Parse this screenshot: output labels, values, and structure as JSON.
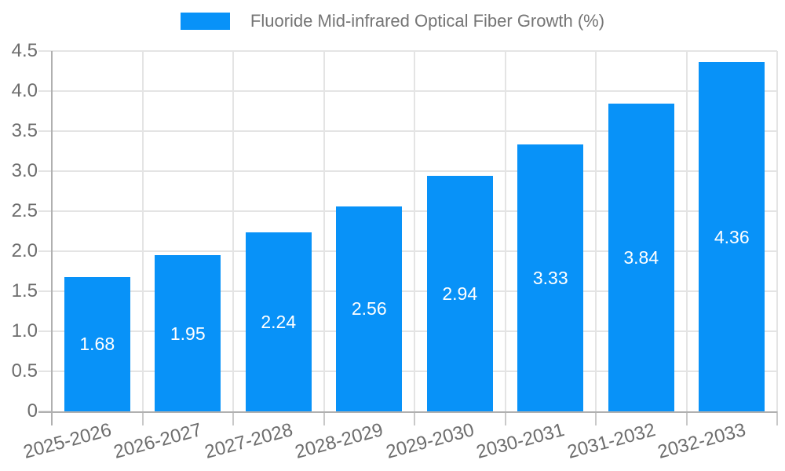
{
  "legend": {
    "label": "Fluoride Mid-infrared Optical Fiber Growth (%)"
  },
  "colors": {
    "bar": "#0892f8",
    "grid": "#e4e4e4",
    "axis": "#b0b0b0",
    "tick_mark": "#c9c9c9",
    "tick_text": "#6d6d6d",
    "legend_text": "#757575",
    "value_text": "#ffffff",
    "background": "#ffffff"
  },
  "chart_data": {
    "type": "bar",
    "title": "Fluoride Mid-infrared Optical Fiber Growth (%)",
    "series": [
      {
        "name": "Fluoride Mid-infrared Optical Fiber Growth (%)",
        "values": [
          1.68,
          1.95,
          2.24,
          2.56,
          2.94,
          3.33,
          3.84,
          4.36
        ]
      }
    ],
    "categories": [
      "2025-2026",
      "2026-2027",
      "2027-2028",
      "2028-2029",
      "2029-2030",
      "2030-2031",
      "2031-2032",
      "2032-2033"
    ],
    "value_labels": [
      "1.68",
      "1.95",
      "2.24",
      "2.56",
      "2.94",
      "3.33",
      "3.84",
      "4.36"
    ],
    "xlabel": "",
    "ylabel": "",
    "ylim": [
      0,
      4.5
    ],
    "ytick_step": 0.5,
    "ytick_labels": [
      "0",
      "0.5",
      "1.0",
      "1.5",
      "2.0",
      "2.5",
      "3.0",
      "3.5",
      "4.0",
      "4.5"
    ],
    "grid": true,
    "legend_position": "top-center",
    "value_label_position": "inside-center",
    "xtick_rotation_deg": -15
  }
}
